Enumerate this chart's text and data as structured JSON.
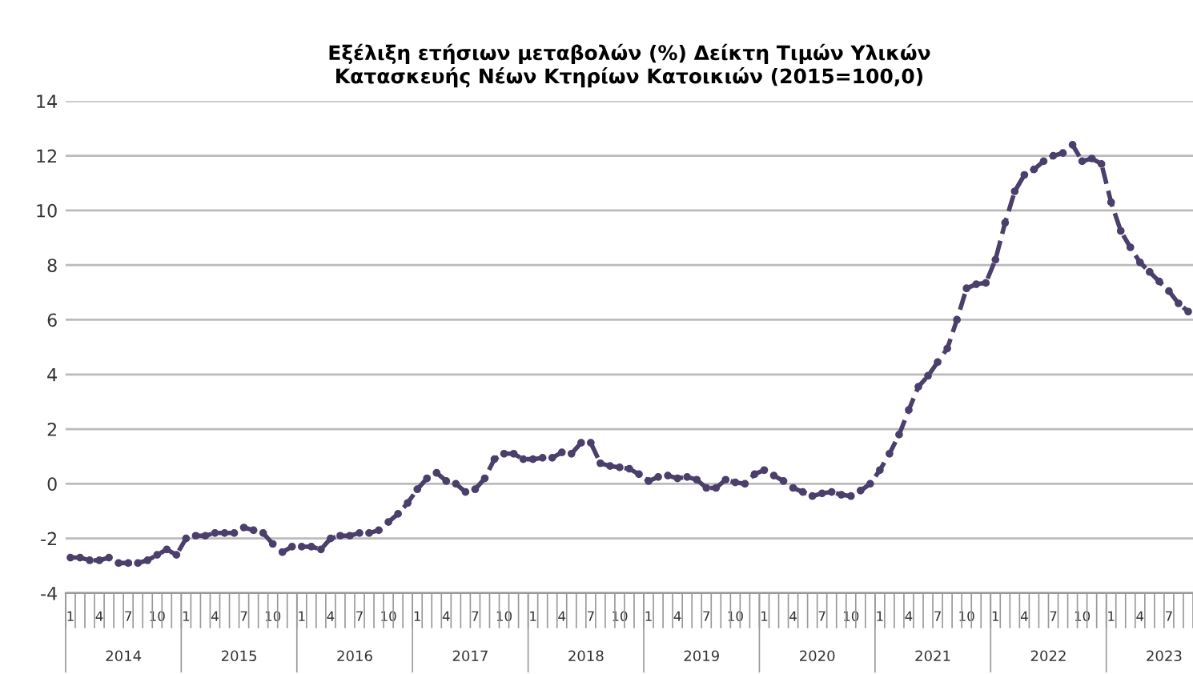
{
  "chart_data": {
    "type": "line",
    "title": "Εξέλιξη ετήσιων μεταβολών (%) Δείκτη Τιμών Υλικών\nΚατασκευής Νέων Κτηρίων Κατοικιών (2015=100,0)",
    "categories": [
      "1",
      null,
      null,
      "4",
      null,
      null,
      "7",
      null,
      null,
      "10",
      null,
      null,
      "1",
      null,
      null,
      "4",
      null,
      null,
      "7",
      null,
      null,
      "10",
      null,
      null,
      "1",
      null,
      null,
      "4",
      null,
      null,
      "7",
      null,
      null,
      "10",
      null,
      null,
      "1",
      null,
      null,
      "4",
      null,
      null,
      "7",
      null,
      null,
      "10",
      null,
      null,
      "1",
      null,
      null,
      "4",
      null,
      null,
      "7",
      null,
      null,
      "10",
      null,
      null,
      "1",
      null,
      null,
      "4",
      null,
      null,
      "7",
      null,
      null,
      "10",
      null,
      null,
      "1",
      null,
      null,
      "4",
      null,
      null,
      "7",
      null,
      null,
      "10",
      null,
      null,
      "1",
      null,
      null,
      "4",
      null,
      null,
      "7",
      null,
      null,
      "10",
      null,
      null,
      "1",
      null,
      null,
      "4",
      null,
      null,
      "7",
      null,
      null,
      "10",
      null,
      null,
      "1",
      null,
      null,
      "4",
      null,
      null,
      "7",
      null,
      null
    ],
    "series": [
      {
        "color": "#4b3f6b",
        "values": [
          -2.7,
          -2.7,
          -2.8,
          -2.8,
          -2.7,
          -2.9,
          -2.9,
          -2.9,
          -2.8,
          -2.6,
          -2.4,
          -2.6,
          -2.0,
          -1.9,
          -1.9,
          -1.8,
          -1.8,
          -1.8,
          -1.6,
          -1.7,
          -1.8,
          -2.2,
          -2.5,
          -2.3,
          -2.3,
          -2.3,
          -2.4,
          -2.0,
          -1.9,
          -1.9,
          -1.8,
          -1.8,
          -1.7,
          -1.4,
          -1.1,
          -0.7,
          -0.2,
          0.2,
          0.4,
          0.1,
          0.0,
          -0.3,
          -0.2,
          0.2,
          0.9,
          1.1,
          1.1,
          0.9,
          0.9,
          0.95,
          0.95,
          1.15,
          1.1,
          1.5,
          1.5,
          0.75,
          0.65,
          0.6,
          0.55,
          0.35,
          0.1,
          0.25,
          0.3,
          0.2,
          0.25,
          0.15,
          -0.15,
          -0.15,
          0.15,
          0.05,
          0.0,
          0.35,
          0.5,
          0.3,
          0.1,
          -0.15,
          -0.3,
          -0.45,
          -0.35,
          -0.3,
          -0.4,
          -0.45,
          -0.25,
          0.0,
          0.5,
          1.1,
          1.8,
          2.7,
          3.55,
          3.95,
          4.45,
          4.95,
          6.0,
          7.15,
          7.3,
          7.35,
          8.2,
          9.55,
          10.7,
          11.3,
          11.5,
          11.8,
          12.0,
          12.1,
          12.4,
          11.8,
          11.9,
          11.7,
          10.3,
          9.25,
          8.65,
          8.1,
          7.75,
          7.4,
          7.05,
          6.6,
          6.3
        ]
      }
    ],
    "annotations": [
      "2014",
      "2015",
      "2016",
      "2017",
      "2018",
      "2019",
      "2020",
      "2021",
      "2022",
      "2023"
    ],
    "ylim": [
      -4,
      14
    ],
    "yticks": [
      -4,
      -2,
      0,
      2,
      4,
      6,
      8,
      10,
      12,
      14
    ],
    "grid": "y",
    "marker": "circle",
    "line_style": "dashed"
  }
}
